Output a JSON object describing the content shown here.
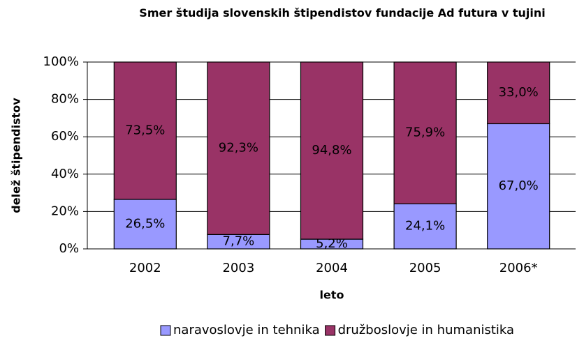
{
  "chart_data": {
    "type": "stacked_bar",
    "title": "Smer študija slovenskih štipendistov fundacije Ad futura v tujini",
    "x_label": "leto",
    "y_label": "delež štipendistov",
    "categories": [
      "2002",
      "2003",
      "2004",
      "2005",
      "2006*"
    ],
    "series": [
      {
        "name": "naravoslovje in tehnika",
        "color": "#9999ff",
        "values": [
          26.5,
          7.7,
          5.2,
          24.1,
          67.0
        ],
        "value_labels": [
          "26,5%",
          "7,7%",
          "5,2%",
          "24,1%",
          "67,0%"
        ]
      },
      {
        "name": "družboslovje in humanistika",
        "color": "#993366",
        "values": [
          73.5,
          92.3,
          94.8,
          75.9,
          33.0
        ],
        "value_labels": [
          "73,5%",
          "92,3%",
          "94,8%",
          "75,9%",
          "33,0%"
        ]
      }
    ],
    "ylim": [
      0,
      100
    ],
    "yticks": [
      {
        "value": 0,
        "label": "0%"
      },
      {
        "value": 20,
        "label": "20%"
      },
      {
        "value": 40,
        "label": "40%"
      },
      {
        "value": 60,
        "label": "60%"
      },
      {
        "value": 80,
        "label": "80%"
      },
      {
        "value": 100,
        "label": "100%"
      }
    ],
    "grid": true,
    "legend": "bottom"
  }
}
